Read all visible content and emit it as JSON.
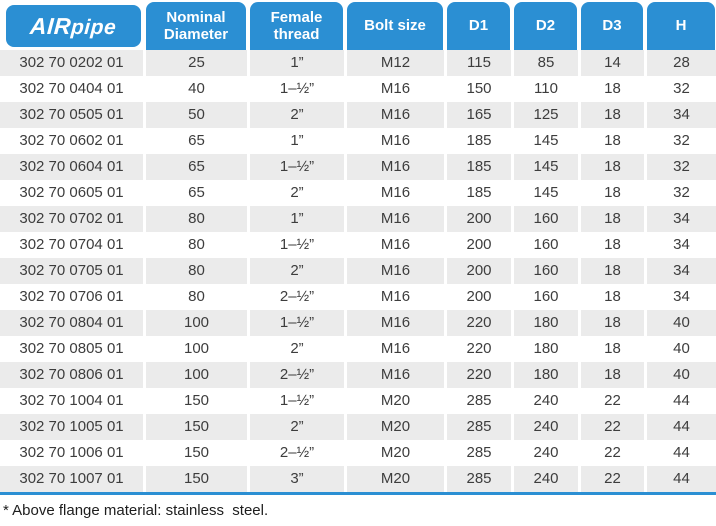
{
  "logo": {
    "air": "AIR",
    "pipe": "pipe"
  },
  "colors": {
    "accent_blue": "#2b8fd3",
    "stripe_gray": "#ebebeb"
  },
  "table": {
    "columns": [
      "Nominal Diameter",
      "Female thread",
      "Bolt size",
      "D1",
      "D2",
      "D3",
      "H"
    ],
    "rows": [
      {
        "part": "302 70 0202 01",
        "nominal": "25",
        "thread": "1”",
        "bolt": "M12",
        "d1": "115",
        "d2": "85",
        "d3": "14",
        "h": "28"
      },
      {
        "part": "302 70 0404 01",
        "nominal": "40",
        "thread": "1–½”",
        "bolt": "M16",
        "d1": "150",
        "d2": "110",
        "d3": "18",
        "h": "32"
      },
      {
        "part": "302 70 0505 01",
        "nominal": "50",
        "thread": "2”",
        "bolt": "M16",
        "d1": "165",
        "d2": "125",
        "d3": "18",
        "h": "34"
      },
      {
        "part": "302 70 0602 01",
        "nominal": "65",
        "thread": "1”",
        "bolt": "M16",
        "d1": "185",
        "d2": "145",
        "d3": "18",
        "h": "32"
      },
      {
        "part": "302 70 0604 01",
        "nominal": "65",
        "thread": "1–½”",
        "bolt": "M16",
        "d1": "185",
        "d2": "145",
        "d3": "18",
        "h": "32"
      },
      {
        "part": "302 70 0605 01",
        "nominal": "65",
        "thread": "2”",
        "bolt": "M16",
        "d1": "185",
        "d2": "145",
        "d3": "18",
        "h": "32"
      },
      {
        "part": "302 70 0702 01",
        "nominal": "80",
        "thread": "1”",
        "bolt": "M16",
        "d1": "200",
        "d2": "160",
        "d3": "18",
        "h": "34"
      },
      {
        "part": "302 70 0704 01",
        "nominal": "80",
        "thread": "1–½”",
        "bolt": "M16",
        "d1": "200",
        "d2": "160",
        "d3": "18",
        "h": "34"
      },
      {
        "part": "302 70 0705 01",
        "nominal": "80",
        "thread": "2”",
        "bolt": "M16",
        "d1": "200",
        "d2": "160",
        "d3": "18",
        "h": "34"
      },
      {
        "part": "302 70 0706 01",
        "nominal": "80",
        "thread": "2–½”",
        "bolt": "M16",
        "d1": "200",
        "d2": "160",
        "d3": "18",
        "h": "34"
      },
      {
        "part": "302 70 0804 01",
        "nominal": "100",
        "thread": "1–½”",
        "bolt": "M16",
        "d1": "220",
        "d2": "180",
        "d3": "18",
        "h": "40"
      },
      {
        "part": "302 70 0805 01",
        "nominal": "100",
        "thread": "2”",
        "bolt": "M16",
        "d1": "220",
        "d2": "180",
        "d3": "18",
        "h": "40"
      },
      {
        "part": "302 70 0806 01",
        "nominal": "100",
        "thread": "2–½”",
        "bolt": "M16",
        "d1": "220",
        "d2": "180",
        "d3": "18",
        "h": "40"
      },
      {
        "part": "302 70 1004 01",
        "nominal": "150",
        "thread": "1–½”",
        "bolt": "M20",
        "d1": "285",
        "d2": "240",
        "d3": "22",
        "h": "44"
      },
      {
        "part": "302 70 1005 01",
        "nominal": "150",
        "thread": "2”",
        "bolt": "M20",
        "d1": "285",
        "d2": "240",
        "d3": "22",
        "h": "44"
      },
      {
        "part": "302 70 1006 01",
        "nominal": "150",
        "thread": "2–½”",
        "bolt": "M20",
        "d1": "285",
        "d2": "240",
        "d3": "22",
        "h": "44"
      },
      {
        "part": "302 70 1007 01",
        "nominal": "150",
        "thread": "3”",
        "bolt": "M20",
        "d1": "285",
        "d2": "240",
        "d3": "22",
        "h": "44"
      }
    ]
  },
  "footnote": "* Above flange material: stainless  steel."
}
